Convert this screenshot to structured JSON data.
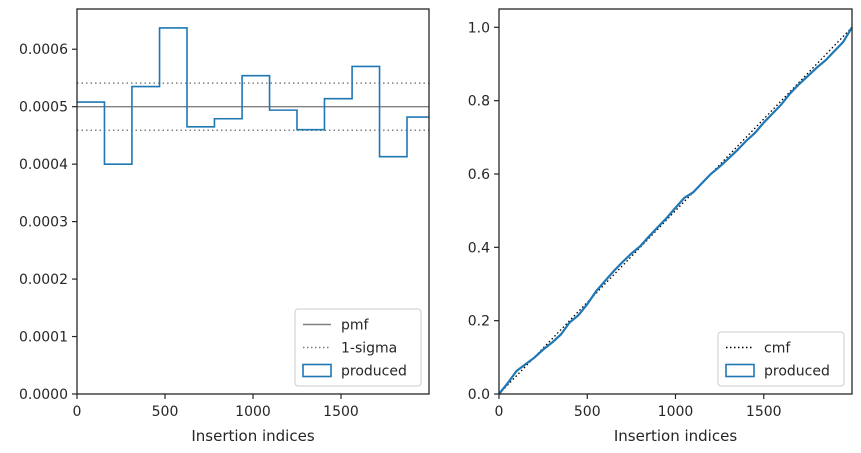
{
  "chart_data": [
    {
      "type": "step",
      "xlabel": "Insertion indices",
      "ylabel": "",
      "xlim": [
        0,
        2000
      ],
      "ylim": [
        0,
        0.00067
      ],
      "x_ticks": [
        0,
        500,
        1000,
        1500
      ],
      "x_tick_labels": [
        "0",
        "500",
        "1000",
        "1500"
      ],
      "y_ticks": [
        0,
        0.0001,
        0.0002,
        0.0003,
        0.0004,
        0.0005,
        0.0006
      ],
      "y_tick_labels": [
        "0.0000",
        "0.0001",
        "0.0002",
        "0.0003",
        "0.0004",
        "0.0005",
        "0.0006"
      ],
      "bin_edges": [
        0,
        156,
        312,
        469,
        625,
        781,
        938,
        1094,
        1250,
        1406,
        1563,
        1719,
        1875,
        2000
      ],
      "values": [
        0.000508,
        0.0004,
        0.000535,
        0.000637,
        0.000465,
        0.000479,
        0.000554,
        0.000494,
        0.00046,
        0.000514,
        0.00057,
        0.000413,
        0.000482
      ],
      "pmf": 0.0005,
      "sigma_band": [
        0.000459,
        0.000541
      ],
      "legend_position": "lower right",
      "legend": [
        {
          "label": "pmf",
          "style": "solid-line",
          "color": "#808080"
        },
        {
          "label": "1-sigma",
          "style": "dotted-line",
          "color": "#808080"
        },
        {
          "label": "produced",
          "style": "box",
          "color": "#1f77b4"
        }
      ],
      "colors": {
        "produced": "#1f77b4",
        "reference": "#808080"
      }
    },
    {
      "type": "line",
      "xlabel": "Insertion indices",
      "ylabel": "",
      "xlim": [
        0,
        2000
      ],
      "ylim": [
        0,
        1.05
      ],
      "x_ticks": [
        0,
        500,
        1000,
        1500
      ],
      "x_tick_labels": [
        "0",
        "500",
        "1000",
        "1500"
      ],
      "y_ticks": [
        0,
        0.2,
        0.4,
        0.6,
        0.8,
        1.0
      ],
      "y_tick_labels": [
        "0.0",
        "0.2",
        "0.4",
        "0.6",
        "0.8",
        "1.0"
      ],
      "series": [
        {
          "name": "cmf",
          "style": "dotted",
          "color": "#000000",
          "x": [
            0,
            2000
          ],
          "y": [
            0,
            1.0
          ]
        },
        {
          "name": "produced",
          "style": "solid",
          "color": "#1f77b4",
          "x": [
            0,
            50,
            100,
            150,
            200,
            250,
            300,
            350,
            400,
            450,
            500,
            550,
            600,
            650,
            700,
            750,
            800,
            850,
            900,
            950,
            1000,
            1050,
            1100,
            1150,
            1200,
            1250,
            1300,
            1350,
            1400,
            1450,
            1500,
            1550,
            1600,
            1650,
            1700,
            1750,
            1800,
            1850,
            1900,
            1950,
            2000
          ],
          "y": [
            0,
            0.03,
            0.063,
            0.081,
            0.099,
            0.121,
            0.14,
            0.162,
            0.195,
            0.215,
            0.245,
            0.28,
            0.308,
            0.335,
            0.36,
            0.383,
            0.403,
            0.43,
            0.455,
            0.48,
            0.508,
            0.535,
            0.55,
            0.575,
            0.6,
            0.62,
            0.642,
            0.665,
            0.69,
            0.712,
            0.74,
            0.765,
            0.79,
            0.82,
            0.845,
            0.867,
            0.89,
            0.91,
            0.935,
            0.96,
            1.0
          ]
        }
      ],
      "legend_position": "lower right",
      "legend": [
        {
          "label": "cmf",
          "style": "dotted-line",
          "color": "#000000"
        },
        {
          "label": "produced",
          "style": "box",
          "color": "#1f77b4"
        }
      ]
    }
  ]
}
